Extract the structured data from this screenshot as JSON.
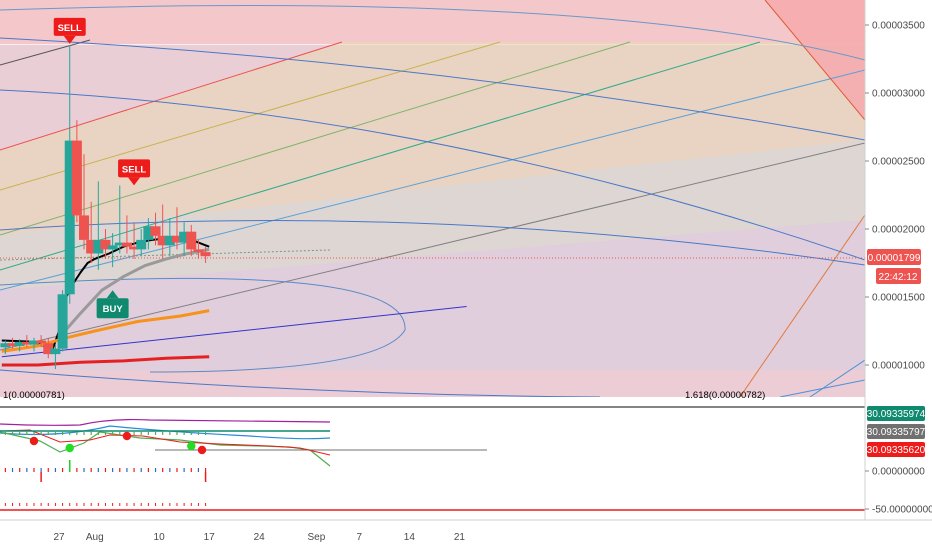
{
  "chart_data": {
    "type": "candlestick",
    "price_scale": {
      "ticks": [
        {
          "label": "0.00003500",
          "value": 3.5
        },
        {
          "label": "0.00003000",
          "value": 3.0
        },
        {
          "label": "0.00002500",
          "value": 2.5
        },
        {
          "label": "0.00002000",
          "value": 2.0
        },
        {
          "label": "0.00001500",
          "value": 1.5
        },
        {
          "label": "0.00001000",
          "value": 1.0
        }
      ],
      "unit_note": "values in 1e-5"
    },
    "last_price": {
      "label": "0.00001799",
      "value": 1.799,
      "color": "#ef5350"
    },
    "countdown": "22:42:12",
    "time_axis": {
      "ticks": [
        {
          "label": "27",
          "day": 27
        },
        {
          "label": "Aug",
          "day": 32
        },
        {
          "label": "10",
          "day": 41
        },
        {
          "label": "17",
          "day": 48
        },
        {
          "label": "24",
          "day": 55
        },
        {
          "label": "Sep",
          "day": 63
        },
        {
          "label": "7",
          "day": 69
        },
        {
          "label": "14",
          "day": 76
        },
        {
          "label": "21",
          "day": 83
        }
      ]
    },
    "candles": [
      {
        "d": 19.5,
        "o": 1.13,
        "h": 1.18,
        "l": 1.08,
        "c": 1.16
      },
      {
        "d": 20.5,
        "o": 1.16,
        "h": 1.2,
        "l": 1.12,
        "c": 1.14
      },
      {
        "d": 21.5,
        "o": 1.14,
        "h": 1.19,
        "l": 1.1,
        "c": 1.17
      },
      {
        "d": 22.5,
        "o": 1.17,
        "h": 1.22,
        "l": 1.13,
        "c": 1.15
      },
      {
        "d": 23.5,
        "o": 1.15,
        "h": 1.2,
        "l": 1.1,
        "c": 1.18
      },
      {
        "d": 24.5,
        "o": 1.18,
        "h": 1.22,
        "l": 1.13,
        "c": 1.16
      },
      {
        "d": 25.5,
        "o": 1.16,
        "h": 1.2,
        "l": 1.05,
        "c": 1.08
      },
      {
        "d": 26.5,
        "o": 1.08,
        "h": 1.15,
        "l": 0.97,
        "c": 1.12
      },
      {
        "d": 27.5,
        "o": 1.12,
        "h": 1.55,
        "l": 1.1,
        "c": 1.52
      },
      {
        "d": 28.5,
        "o": 1.52,
        "h": 3.35,
        "l": 1.45,
        "c": 2.65
      },
      {
        "d": 29.5,
        "o": 2.65,
        "h": 2.8,
        "l": 2.05,
        "c": 2.1
      },
      {
        "d": 30.5,
        "o": 2.1,
        "h": 2.55,
        "l": 1.85,
        "c": 1.92
      },
      {
        "d": 31.5,
        "o": 1.92,
        "h": 2.2,
        "l": 1.75,
        "c": 1.82
      },
      {
        "d": 32.5,
        "o": 1.82,
        "h": 2.35,
        "l": 1.7,
        "c": 1.92
      },
      {
        "d": 33.5,
        "o": 1.92,
        "h": 2.0,
        "l": 1.78,
        "c": 1.85
      },
      {
        "d": 34.5,
        "o": 1.85,
        "h": 1.97,
        "l": 1.72,
        "c": 1.88
      },
      {
        "d": 35.5,
        "o": 1.88,
        "h": 2.32,
        "l": 1.82,
        "c": 1.9
      },
      {
        "d": 36.5,
        "o": 1.9,
        "h": 2.1,
        "l": 1.82,
        "c": 1.87
      },
      {
        "d": 37.5,
        "o": 1.87,
        "h": 2.05,
        "l": 1.78,
        "c": 1.85
      },
      {
        "d": 38.5,
        "o": 1.85,
        "h": 2.0,
        "l": 1.8,
        "c": 1.92
      },
      {
        "d": 39.5,
        "o": 1.92,
        "h": 2.08,
        "l": 1.85,
        "c": 2.02
      },
      {
        "d": 40.5,
        "o": 2.02,
        "h": 2.12,
        "l": 1.88,
        "c": 1.95
      },
      {
        "d": 41.5,
        "o": 1.95,
        "h": 2.18,
        "l": 1.78,
        "c": 1.88
      },
      {
        "d": 42.5,
        "o": 1.88,
        "h": 2.08,
        "l": 1.8,
        "c": 1.95
      },
      {
        "d": 43.5,
        "o": 1.95,
        "h": 2.16,
        "l": 1.85,
        "c": 1.9
      },
      {
        "d": 44.5,
        "o": 1.9,
        "h": 2.05,
        "l": 1.8,
        "c": 1.98
      },
      {
        "d": 45.5,
        "o": 1.98,
        "h": 2.03,
        "l": 1.8,
        "c": 1.85
      },
      {
        "d": 46.5,
        "o": 1.85,
        "h": 1.92,
        "l": 1.78,
        "c": 1.83
      },
      {
        "d": 47.5,
        "o": 1.83,
        "h": 1.87,
        "l": 1.75,
        "c": 1.8
      }
    ],
    "series": [
      {
        "name": "",
        "color": "#000000",
        "width": 2,
        "points": [
          [
            19,
            1.18
          ],
          [
            24,
            1.17
          ],
          [
            26,
            1.1
          ],
          [
            27,
            1.25
          ],
          [
            28,
            1.5
          ],
          [
            29,
            1.6
          ],
          [
            30,
            1.68
          ],
          [
            31,
            1.75
          ],
          [
            32,
            1.78
          ],
          [
            34,
            1.82
          ],
          [
            36,
            1.87
          ],
          [
            38,
            1.9
          ],
          [
            40,
            1.92
          ],
          [
            42,
            1.93
          ],
          [
            44,
            1.93
          ],
          [
            46,
            1.91
          ],
          [
            48,
            1.87
          ]
        ]
      },
      {
        "name": "",
        "color": "#9a9a9a",
        "width": 3,
        "points": [
          [
            27,
            1.2
          ],
          [
            30,
            1.38
          ],
          [
            33,
            1.55
          ],
          [
            36,
            1.65
          ],
          [
            39,
            1.73
          ],
          [
            42,
            1.78
          ],
          [
            45,
            1.82
          ],
          [
            48,
            1.85
          ]
        ]
      },
      {
        "name": "",
        "color": "#f7931a",
        "width": 3,
        "points": [
          [
            19,
            1.1
          ],
          [
            24,
            1.14
          ],
          [
            28,
            1.2
          ],
          [
            32,
            1.25
          ],
          [
            38,
            1.32
          ],
          [
            44,
            1.36
          ],
          [
            48,
            1.4
          ]
        ]
      },
      {
        "name": "",
        "color": "#e62020",
        "width": 3,
        "points": [
          [
            19,
            1.0
          ],
          [
            24,
            1.0
          ],
          [
            30,
            1.02
          ],
          [
            36,
            1.03
          ],
          [
            42,
            1.05
          ],
          [
            48,
            1.06
          ]
        ]
      },
      {
        "name": "",
        "color": "#3333cc",
        "width": 1,
        "points": [
          [
            19,
            1.06
          ],
          [
            84,
            1.43
          ]
        ]
      }
    ],
    "signals": [
      {
        "label": "SELL",
        "type": "sell",
        "d": 28.5,
        "price": 3.42,
        "color": "#ee1b1b"
      },
      {
        "label": "SELL",
        "type": "sell",
        "d": 37.5,
        "price": 2.38,
        "color": "#ee1b1b"
      },
      {
        "label": "BUY",
        "type": "buy",
        "d": 34.5,
        "price": 1.55,
        "color": "#0f8a6f"
      }
    ],
    "fib_labels": [
      {
        "text": "1(0.00000781)",
        "color": "#555555"
      },
      {
        "text": "1.618(0.00000782)",
        "color": "#2f7fd8"
      }
    ],
    "oscillator": {
      "scale_ticks": [
        {
          "label": "0.00000000",
          "value": 0
        },
        {
          "label": "-50.00000000",
          "value": -50
        }
      ],
      "value_tags": [
        {
          "label": "30.09335974",
          "color": "#0f8a6f"
        },
        {
          "label": "30.09335797",
          "color": "#707070"
        },
        {
          "label": "30.09335620",
          "color": "#ee1b1b"
        }
      ],
      "dots": [
        {
          "d": 23.5,
          "color": "#ee1b1b"
        },
        {
          "d": 28.5,
          "color": "#22dd22"
        },
        {
          "d": 36.5,
          "color": "#ee1b1b"
        },
        {
          "d": 45.5,
          "color": "#22dd22"
        },
        {
          "d": 47.0,
          "color": "#ee1b1b"
        }
      ]
    }
  }
}
